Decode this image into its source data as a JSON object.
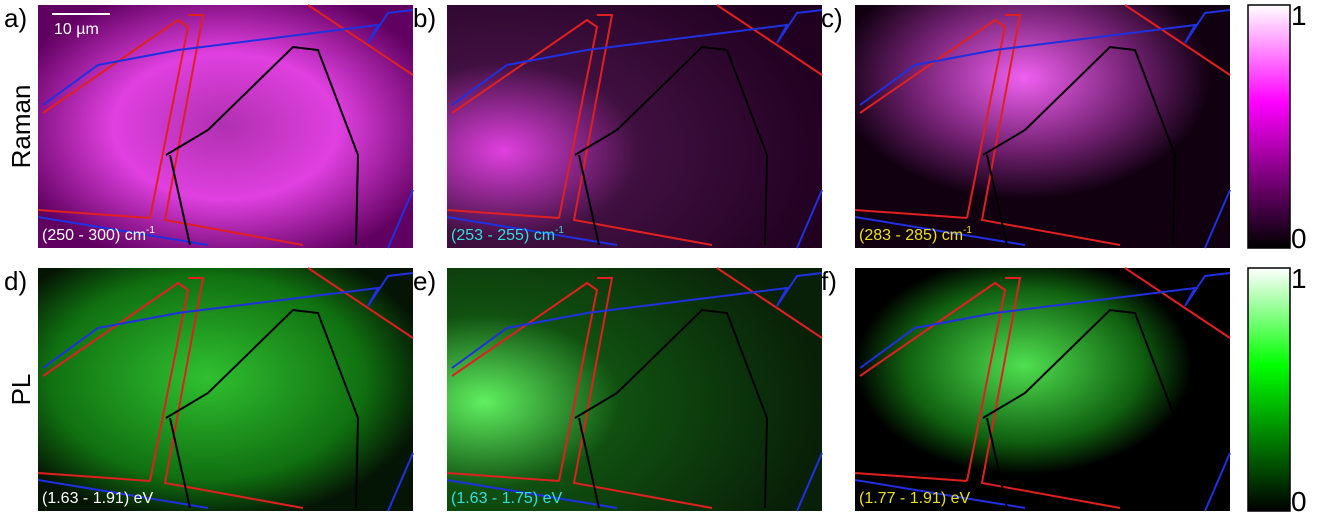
{
  "row_labels": [
    "Raman",
    "PL"
  ],
  "scale_bar": "10 µm",
  "panels": [
    {
      "label": "a)",
      "caption": "(250 - 300) cm",
      "caption_sup": "-1",
      "caption_color": "#ffffff",
      "row": 0
    },
    {
      "label": "b)",
      "caption": "(253 - 255) cm",
      "caption_sup": "-1",
      "caption_color": "#33dddd",
      "row": 0
    },
    {
      "label": "c)",
      "caption": "(283 - 285) cm",
      "caption_sup": "-1",
      "caption_color": "#e8e020",
      "row": 0
    },
    {
      "label": "d)",
      "caption": "(1.63 - 1.91) eV",
      "caption_color": "#ffffff",
      "row": 1
    },
    {
      "label": "e)",
      "caption": "(1.63 - 1.75) eV",
      "caption_color": "#33dddd",
      "row": 1
    },
    {
      "label": "f)",
      "caption": "(1.77 - 1.91) eV",
      "caption_color": "#e8e020",
      "row": 1
    }
  ],
  "colorbars": [
    {
      "ticks": [
        0,
        1
      ],
      "color": "#ff00ff"
    },
    {
      "ticks": [
        0,
        1
      ],
      "color": "#00ff00"
    }
  ]
}
